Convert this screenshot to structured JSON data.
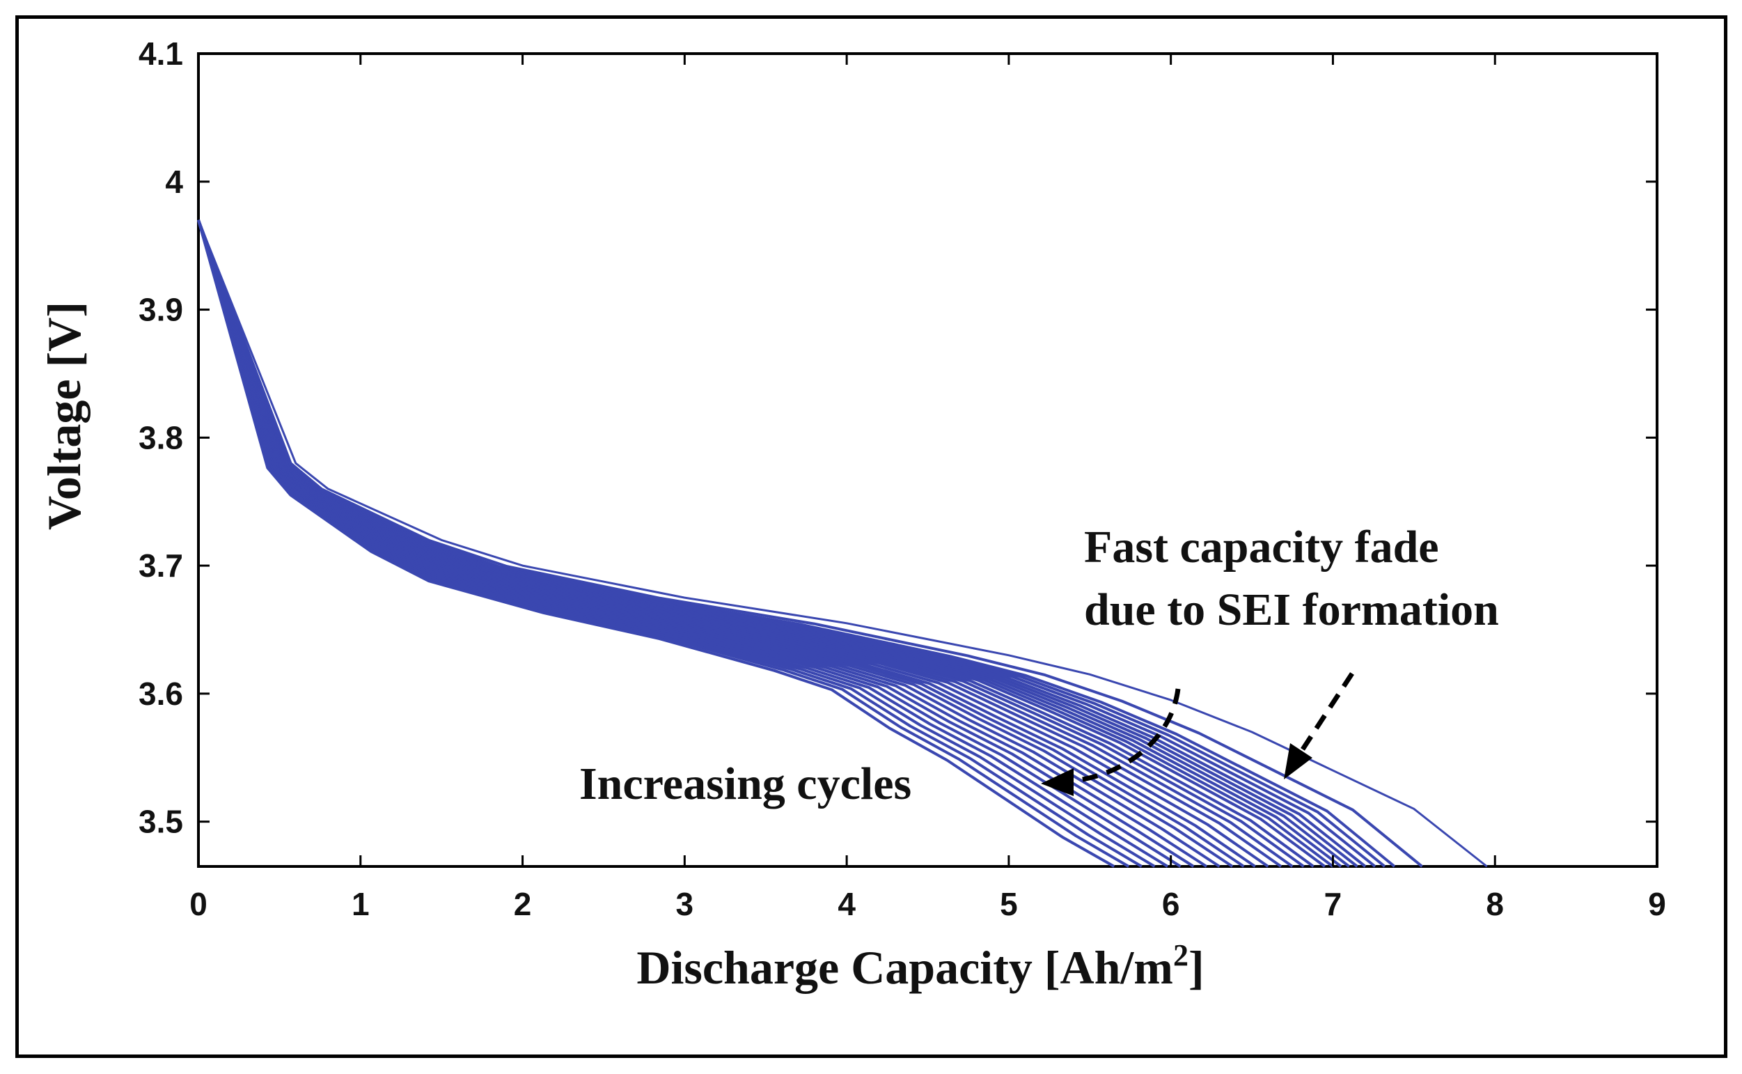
{
  "chart_data": {
    "type": "line",
    "title": "",
    "xlabel": "Discharge Capacity [Ah/m",
    "xlabel_sup": "2",
    "xlabel_close": "]",
    "ylabel": "Voltage [V]",
    "xlim": [
      0,
      9
    ],
    "ylim": [
      3.465,
      4.1
    ],
    "xticks": [
      0,
      1,
      2,
      3,
      4,
      5,
      6,
      7,
      8,
      9
    ],
    "yticks": [
      3.5,
      3.6,
      3.7,
      3.8,
      3.9,
      4.0,
      4.1
    ],
    "ytick_labels": [
      "3.5",
      "3.6",
      "3.7",
      "3.8",
      "3.9",
      "4",
      "4.1"
    ],
    "series_color": "#3a47b0",
    "series_count": 28,
    "series_note": "Discharge curves for successive cycles; end capacity shrinks from ~7.95 (first cycle) to ~5.65 (last cycle).",
    "first_cycle_points": [
      [
        0,
        3.97
      ],
      [
        0.6,
        3.78
      ],
      [
        0.8,
        3.76
      ],
      [
        1.5,
        3.72
      ],
      [
        2.0,
        3.7
      ],
      [
        3.0,
        3.675
      ],
      [
        4.0,
        3.655
      ],
      [
        4.6,
        3.64
      ],
      [
        5.0,
        3.63
      ],
      [
        5.5,
        3.615
      ],
      [
        6.0,
        3.595
      ],
      [
        6.5,
        3.57
      ],
      [
        7.0,
        3.54
      ],
      [
        7.5,
        3.51
      ],
      [
        7.95,
        3.465
      ]
    ],
    "end_capacities": [
      7.95,
      7.55,
      7.38,
      7.32,
      7.26,
      7.2,
      7.15,
      7.1,
      7.05,
      7.0,
      6.95,
      6.88,
      6.82,
      6.75,
      6.68,
      6.6,
      6.52,
      6.45,
      6.38,
      6.3,
      6.22,
      6.14,
      6.06,
      5.98,
      5.9,
      5.82,
      5.74,
      5.65
    ],
    "annotations": [
      {
        "text_line1": "Fast capacity fade",
        "text_line2": "due to SEI formation",
        "points_to": [
          6.7,
          3.56
        ]
      },
      {
        "text": "Increasing cycles",
        "points_to": [
          5.15,
          3.52
        ]
      }
    ]
  }
}
